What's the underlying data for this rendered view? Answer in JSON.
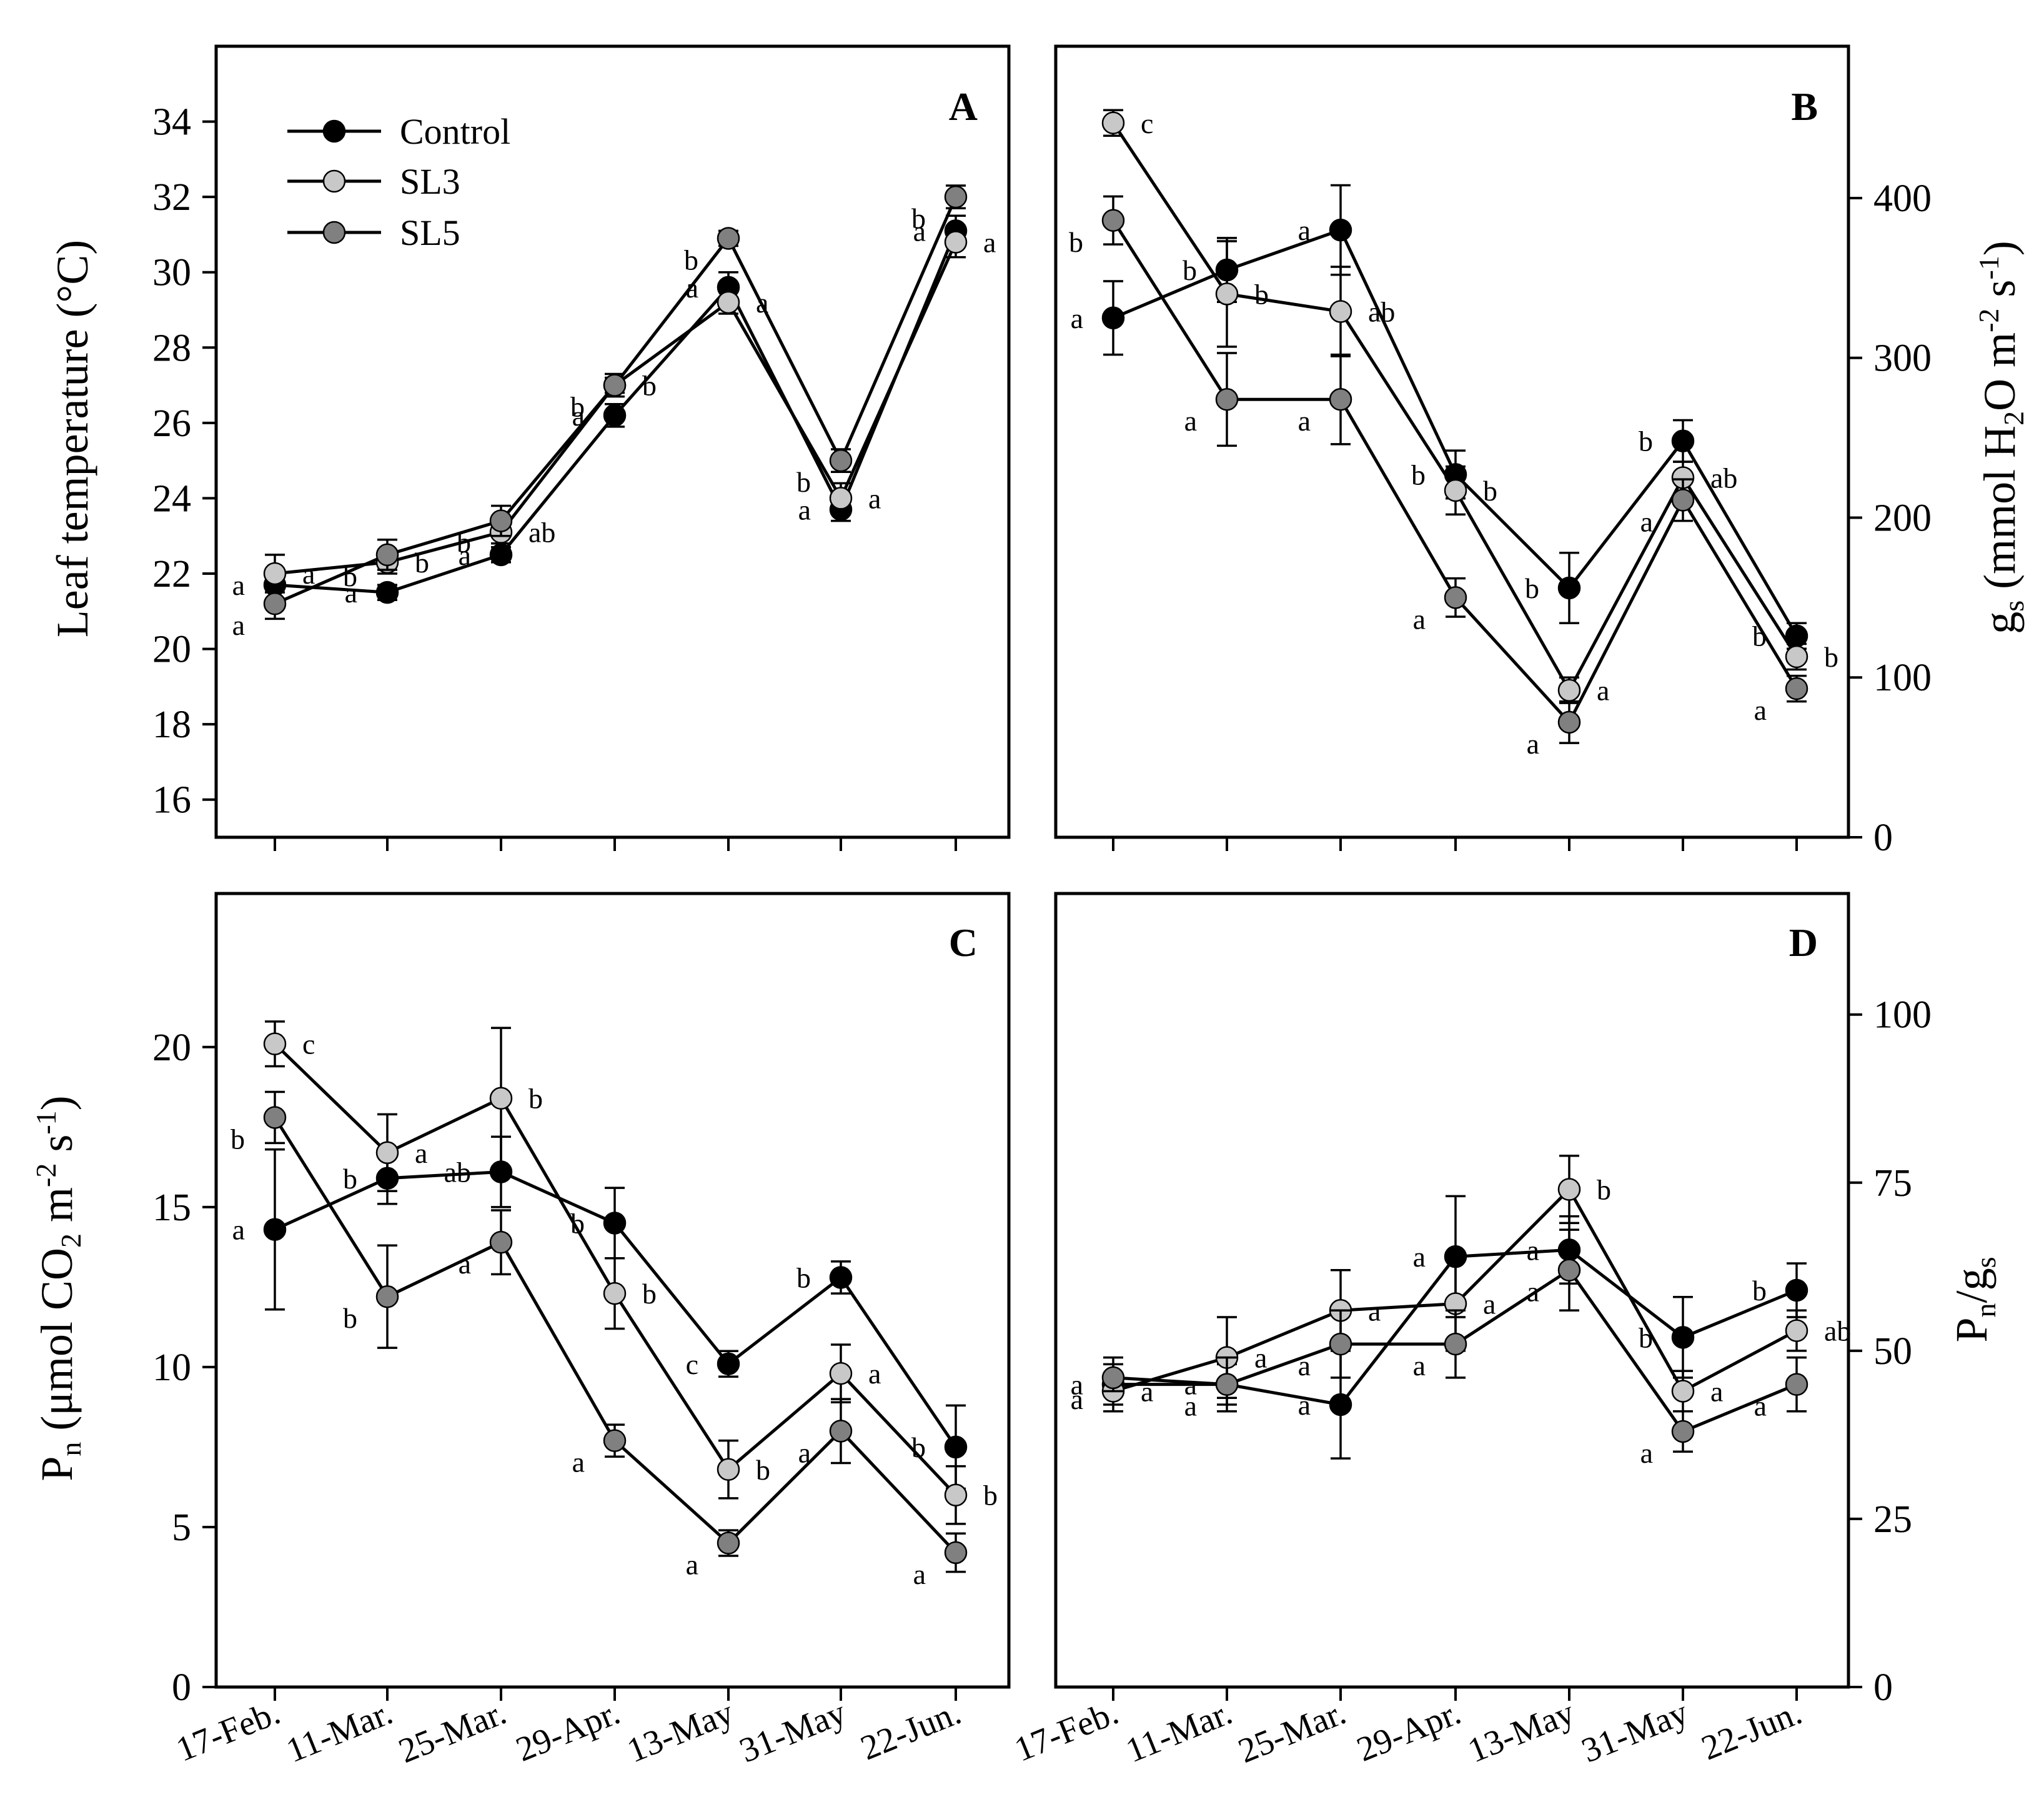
{
  "figure": {
    "legend": [
      {
        "name": "Control",
        "color": "#000000"
      },
      {
        "name": "SL3",
        "color": "#c8c8c8"
      },
      {
        "name": "SL5",
        "color": "#808080"
      }
    ]
  },
  "chart_data": [
    {
      "id": "A",
      "type": "line",
      "panel_label": "A",
      "categories": [
        "17-Feb.",
        "11-Mar.",
        "25-Mar.",
        "29-Apr.",
        "13-May",
        "31-May",
        "22-Jun."
      ],
      "y_axis_side": "left",
      "ylabel_plain": "Leaf temperature (°C)",
      "ylim": [
        15,
        36
      ],
      "yticks": [
        16,
        18,
        20,
        22,
        24,
        26,
        28,
        30,
        32,
        34
      ],
      "ytick_labels": [
        "16",
        "18",
        "20",
        "22",
        "24",
        "26",
        "28",
        "30",
        "32",
        "34"
      ],
      "series": [
        {
          "name": "Control",
          "color": "#000000",
          "values": [
            21.7,
            21.5,
            22.5,
            26.2,
            29.6,
            23.7,
            31.1
          ],
          "errors": [
            0.4,
            0.2,
            0.2,
            0.3,
            0.4,
            0.3,
            0.4
          ],
          "letters": [
            "a",
            "a",
            "a",
            "a",
            "a",
            "a",
            "a"
          ]
        },
        {
          "name": "SL3",
          "color": "#c8c8c8",
          "values": [
            22.0,
            22.3,
            23.1,
            27.0,
            29.2,
            24.0,
            30.8
          ],
          "errors": [
            0.5,
            0.3,
            0.3,
            0.3,
            0.3,
            0.4,
            0.4
          ],
          "letters": [
            "a",
            "b",
            "ab",
            "b",
            "a",
            "a",
            "a"
          ]
        },
        {
          "name": "SL5",
          "color": "#808080",
          "values": [
            21.2,
            22.5,
            23.4,
            27.0,
            30.9,
            25.0,
            32.0
          ],
          "errors": [
            0.4,
            0.4,
            0.4,
            0.2,
            0.2,
            0.3,
            0.3
          ],
          "letters": [
            "a",
            "b",
            "b",
            "b",
            "b",
            "b",
            "b"
          ]
        }
      ]
    },
    {
      "id": "B",
      "type": "line",
      "panel_label": "B",
      "categories": [
        "17-Feb.",
        "11-Mar.",
        "25-Mar.",
        "29-Apr.",
        "13-May",
        "31-May",
        "22-Jun."
      ],
      "y_axis_side": "right",
      "ylabel_plain": "g_s (mmol H2O m^-2 s^-1)",
      "ylim": [
        0,
        495
      ],
      "yticks": [
        0,
        100,
        200,
        300,
        400
      ],
      "ytick_labels": [
        "0",
        "100",
        "200",
        "300",
        "400"
      ],
      "series": [
        {
          "name": "Control",
          "color": "#000000",
          "values": [
            325,
            355,
            380,
            227,
            156,
            248,
            126
          ],
          "errors": [
            23,
            20,
            28,
            15,
            22,
            13,
            8
          ],
          "letters": [
            "a",
            "b",
            "a",
            "b",
            "b",
            "b",
            "b"
          ]
        },
        {
          "name": "SL3",
          "color": "#c8c8c8",
          "values": [
            447,
            340,
            329,
            217,
            92,
            225,
            113
          ],
          "errors": [
            8,
            33,
            28,
            15,
            8,
            10,
            8
          ],
          "letters": [
            "c",
            "b",
            "ab",
            "b",
            "a",
            "ab",
            "b"
          ]
        },
        {
          "name": "SL5",
          "color": "#808080",
          "values": [
            386,
            274,
            274,
            150,
            72,
            211,
            93
          ],
          "errors": [
            15,
            29,
            28,
            12,
            13,
            13,
            8
          ],
          "letters": [
            "b",
            "a",
            "a",
            "a",
            "a",
            "a",
            "a"
          ]
        }
      ]
    },
    {
      "id": "C",
      "type": "line",
      "panel_label": "C",
      "categories": [
        "17-Feb.",
        "11-Mar.",
        "25-Mar.",
        "29-Apr.",
        "13-May",
        "31-May",
        "22-Jun."
      ],
      "y_axis_side": "left",
      "ylabel_plain": "P_n (μmol CO2 m^-2 s^-1)",
      "ylim": [
        0,
        24.8
      ],
      "yticks": [
        0,
        5,
        10,
        15,
        20
      ],
      "ytick_labels": [
        "0",
        "5",
        "10",
        "15",
        "20"
      ],
      "series": [
        {
          "name": "Control",
          "color": "#000000",
          "values": [
            14.3,
            15.9,
            16.1,
            14.5,
            10.1,
            12.8,
            7.5
          ],
          "errors": [
            2.5,
            0.8,
            1.1,
            1.1,
            0.4,
            0.5,
            1.3
          ],
          "letters": [
            "a",
            "b",
            "ab",
            "b",
            "c",
            "b",
            "b"
          ]
        },
        {
          "name": "SL3",
          "color": "#c8c8c8",
          "values": [
            20.1,
            16.7,
            18.4,
            12.3,
            6.8,
            9.8,
            6.0
          ],
          "errors": [
            0.7,
            1.2,
            2.2,
            1.1,
            0.9,
            0.9,
            0.9
          ],
          "letters": [
            "c",
            "a",
            "b",
            "b",
            "b",
            "a",
            "b"
          ]
        },
        {
          "name": "SL5",
          "color": "#808080",
          "values": [
            17.8,
            12.2,
            13.9,
            7.7,
            4.5,
            8.0,
            4.2
          ],
          "errors": [
            0.8,
            1.6,
            1.0,
            0.5,
            0.4,
            1.0,
            0.6
          ],
          "letters": [
            "b",
            "b",
            "a",
            "a",
            "a",
            "a",
            "a"
          ]
        }
      ]
    },
    {
      "id": "D",
      "type": "line",
      "panel_label": "D",
      "categories": [
        "17-Feb.",
        "11-Mar.",
        "25-Mar.",
        "29-Apr.",
        "13-May",
        "31-May",
        "22-Jun."
      ],
      "y_axis_side": "right",
      "ylabel_plain": "P_n/g_s",
      "ylim": [
        0,
        118
      ],
      "yticks": [
        0,
        25,
        50,
        75,
        100
      ],
      "ytick_labels": [
        "0",
        "25",
        "50",
        "75",
        "100"
      ],
      "series": [
        {
          "name": "Control",
          "color": "#000000",
          "values": [
            45,
            45,
            42,
            64,
            65,
            52,
            59
          ],
          "errors": [
            4,
            3,
            8,
            9,
            5,
            6,
            4
          ],
          "letters": [
            "a",
            "a",
            "a",
            "a",
            "a",
            "b",
            "b"
          ]
        },
        {
          "name": "SL3",
          "color": "#c8c8c8",
          "values": [
            44,
            49,
            56,
            57,
            74,
            44,
            53
          ],
          "errors": [
            2,
            6,
            6,
            7,
            5,
            3,
            3
          ],
          "letters": [
            "a",
            "a",
            "a",
            "a",
            "b",
            "a",
            "ab"
          ]
        },
        {
          "name": "SL5",
          "color": "#808080",
          "values": [
            46,
            45,
            51,
            51,
            62,
            38,
            45
          ],
          "errors": [
            2,
            4,
            5,
            5,
            6,
            3,
            4
          ],
          "letters": [
            "a",
            "a",
            "a",
            "a",
            "a",
            "a",
            "a"
          ]
        }
      ]
    }
  ]
}
